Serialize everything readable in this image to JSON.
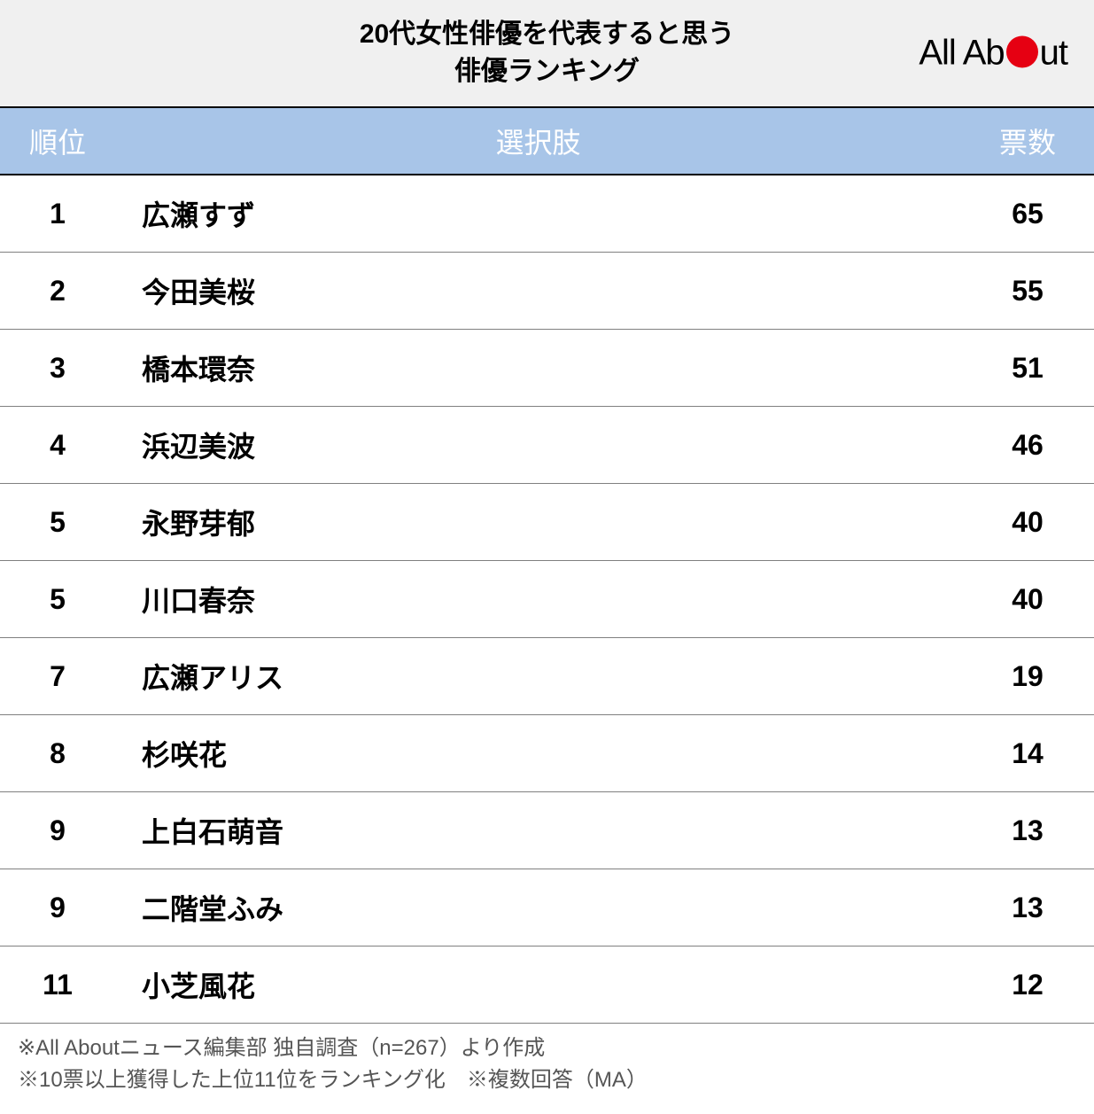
{
  "header": {
    "title_line1": "20代女性俳優を代表すると思う",
    "title_line2": "俳優ランキング",
    "logo_text_before": "All Ab",
    "logo_text_after": "ut"
  },
  "table": {
    "columns": [
      {
        "key": "rank",
        "label": "順位"
      },
      {
        "key": "name",
        "label": "選択肢"
      },
      {
        "key": "votes",
        "label": "票数"
      }
    ],
    "rows": [
      {
        "rank": "1",
        "name": "広瀬すず",
        "votes": "65"
      },
      {
        "rank": "2",
        "name": "今田美桜",
        "votes": "55"
      },
      {
        "rank": "3",
        "name": "橋本環奈",
        "votes": "51"
      },
      {
        "rank": "4",
        "name": "浜辺美波",
        "votes": "46"
      },
      {
        "rank": "5",
        "name": "永野芽郁",
        "votes": "40"
      },
      {
        "rank": "5",
        "name": "川口春奈",
        "votes": "40"
      },
      {
        "rank": "7",
        "name": "広瀬アリス",
        "votes": "19"
      },
      {
        "rank": "8",
        "name": "杉咲花",
        "votes": "14"
      },
      {
        "rank": "9",
        "name": "上白石萌音",
        "votes": "13"
      },
      {
        "rank": "9",
        "name": "二階堂ふみ",
        "votes": "13"
      },
      {
        "rank": "11",
        "name": "小芝風花",
        "votes": "12"
      }
    ]
  },
  "footer": {
    "note1": "※All Aboutニュース編集部 独自調査（n=267）より作成",
    "note2": "※10票以上獲得した上位11位をランキング化　※複数回答（MA）"
  },
  "styling": {
    "header_bg": "#f0f0f0",
    "table_header_bg": "#a8c5e8",
    "table_header_text": "#ffffff",
    "border_color": "#000000",
    "row_border_color": "#808080",
    "logo_dot_color": "#e60012",
    "title_fontsize": 30,
    "header_fontsize": 32,
    "cell_fontsize": 32,
    "footer_fontsize": 24
  }
}
